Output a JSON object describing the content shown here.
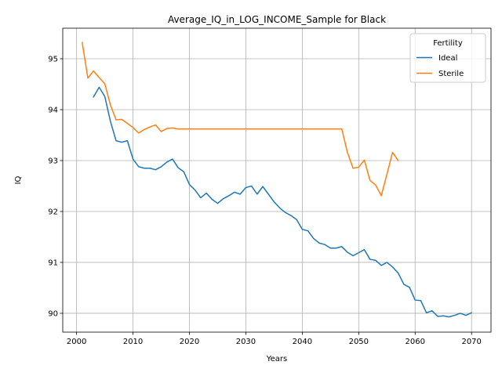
{
  "chart_data": {
    "type": "line",
    "title": "Average_IQ_in_LOG_INCOME_Sample for Black",
    "xlabel": "Years",
    "ylabel": "IQ",
    "xlim": [
      1997.55,
      2073.45
    ],
    "ylim": [
      89.63,
      95.6
    ],
    "xticks": [
      2000,
      2010,
      2020,
      2030,
      2040,
      2050,
      2060,
      2070
    ],
    "yticks": [
      90,
      91,
      92,
      93,
      94,
      95
    ],
    "grid": true,
    "legend": {
      "title": "Fertility",
      "position": "top-right"
    },
    "series": [
      {
        "name": "Ideal",
        "color": "#1f77b4",
        "x": [
          2003,
          2004,
          2005,
          2006,
          2007,
          2008,
          2009,
          2010,
          2011,
          2012,
          2013,
          2014,
          2015,
          2016,
          2017,
          2018,
          2019,
          2020,
          2021,
          2022,
          2023,
          2024,
          2025,
          2026,
          2027,
          2028,
          2029,
          2030,
          2031,
          2032,
          2033,
          2034,
          2035,
          2036,
          2037,
          2038,
          2039,
          2040,
          2041,
          2042,
          2043,
          2044,
          2045,
          2046,
          2047,
          2048,
          2049,
          2050,
          2051,
          2052,
          2053,
          2054,
          2055,
          2056,
          2057,
          2058,
          2059,
          2060,
          2061,
          2062,
          2063,
          2064,
          2065,
          2066,
          2067,
          2068,
          2069,
          2070
        ],
        "values": [
          94.25,
          94.44,
          94.26,
          93.77,
          93.39,
          93.36,
          93.39,
          93.03,
          92.88,
          92.85,
          92.85,
          92.82,
          92.88,
          92.97,
          93.03,
          92.86,
          92.78,
          92.53,
          92.42,
          92.27,
          92.36,
          92.24,
          92.16,
          92.25,
          92.31,
          92.38,
          92.34,
          92.47,
          92.5,
          92.34,
          92.49,
          92.34,
          92.19,
          92.07,
          91.98,
          91.92,
          91.84,
          91.65,
          91.62,
          91.47,
          91.38,
          91.35,
          91.28,
          91.28,
          91.31,
          91.2,
          91.13,
          91.19,
          91.25,
          91.06,
          91.04,
          90.94,
          91.0,
          90.91,
          90.79,
          90.57,
          90.51,
          90.26,
          90.25,
          90.01,
          90.05,
          89.94,
          89.95,
          89.93,
          89.96,
          90.0,
          89.96,
          90.01
        ]
      },
      {
        "name": "Sterile",
        "color": "#ff7f0e",
        "x": [
          2001,
          2002,
          2003,
          2004,
          2005,
          2006,
          2007,
          2008,
          2009,
          2010,
          2011,
          2012,
          2013,
          2014,
          2015,
          2016,
          2017,
          2018,
          2019,
          2020,
          2021,
          2022,
          2023,
          2024,
          2025,
          2026,
          2027,
          2028,
          2029,
          2030,
          2031,
          2032,
          2033,
          2034,
          2035,
          2036,
          2037,
          2038,
          2039,
          2040,
          2041,
          2042,
          2043,
          2044,
          2045,
          2046,
          2047,
          2048,
          2049,
          2050,
          2051,
          2052,
          2053,
          2054,
          2055,
          2056,
          2057
        ],
        "values": [
          95.32,
          94.62,
          94.76,
          94.63,
          94.51,
          94.09,
          93.8,
          93.81,
          93.73,
          93.65,
          93.54,
          93.61,
          93.66,
          93.7,
          93.57,
          93.63,
          93.64,
          93.62,
          93.62,
          93.62,
          93.62,
          93.62,
          93.62,
          93.62,
          93.62,
          93.62,
          93.62,
          93.62,
          93.62,
          93.62,
          93.62,
          93.62,
          93.62,
          93.62,
          93.62,
          93.62,
          93.62,
          93.62,
          93.62,
          93.62,
          93.62,
          93.62,
          93.62,
          93.62,
          93.62,
          93.62,
          93.62,
          93.16,
          92.85,
          92.87,
          93.01,
          92.61,
          92.52,
          92.31,
          92.73,
          93.16,
          93.0
        ]
      }
    ]
  }
}
